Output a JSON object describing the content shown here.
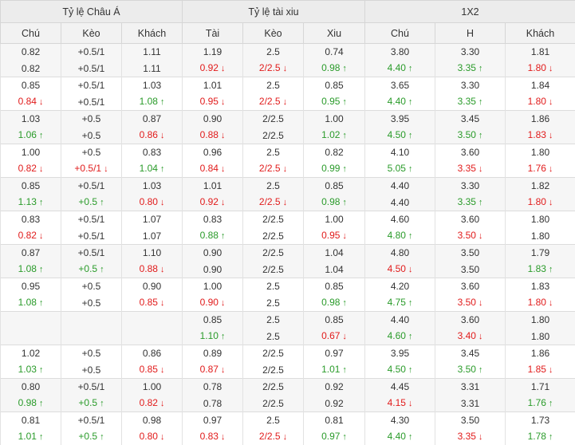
{
  "header": {
    "groups": [
      "Tỷ lệ Châu Á",
      "Tỷ lệ tài xiu",
      "1X2"
    ],
    "columns": [
      "Chú",
      "Kèo",
      "Khách",
      "Tài",
      "Kèo",
      "Xiu",
      "Chú",
      "H",
      "Khách"
    ]
  },
  "rows": [
    [
      [
        "0.82",
        "",
        "0.82",
        ""
      ],
      [
        "+0.5/1",
        "",
        "+0.5/1",
        ""
      ],
      [
        "1.11",
        "",
        "1.11",
        ""
      ],
      [
        "1.19",
        "",
        "0.92",
        "d"
      ],
      [
        "2.5",
        "",
        "2/2.5",
        "d"
      ],
      [
        "0.74",
        "",
        "0.98",
        "u"
      ],
      [
        "3.80",
        "",
        "4.40",
        "u"
      ],
      [
        "3.30",
        "",
        "3.35",
        "u"
      ],
      [
        "1.81",
        "",
        "1.80",
        "d"
      ]
    ],
    [
      [
        "0.85",
        "",
        "0.84",
        "d"
      ],
      [
        "+0.5/1",
        "",
        "+0.5/1",
        ""
      ],
      [
        "1.03",
        "",
        "1.08",
        "u"
      ],
      [
        "1.01",
        "",
        "0.95",
        "d"
      ],
      [
        "2.5",
        "",
        "2/2.5",
        "d"
      ],
      [
        "0.85",
        "",
        "0.95",
        "u"
      ],
      [
        "3.65",
        "",
        "4.40",
        "u"
      ],
      [
        "3.30",
        "",
        "3.35",
        "u"
      ],
      [
        "1.84",
        "",
        "1.80",
        "d"
      ]
    ],
    [
      [
        "1.03",
        "",
        "1.06",
        "u"
      ],
      [
        "+0.5",
        "",
        "+0.5",
        ""
      ],
      [
        "0.87",
        "",
        "0.86",
        "d"
      ],
      [
        "0.90",
        "",
        "0.88",
        "d"
      ],
      [
        "2/2.5",
        "",
        "2/2.5",
        ""
      ],
      [
        "1.00",
        "",
        "1.02",
        "u"
      ],
      [
        "3.95",
        "",
        "4.50",
        "u"
      ],
      [
        "3.45",
        "",
        "3.50",
        "u"
      ],
      [
        "1.86",
        "",
        "1.83",
        "d"
      ]
    ],
    [
      [
        "1.00",
        "",
        "0.82",
        "d"
      ],
      [
        "+0.5",
        "",
        "+0.5/1",
        "d"
      ],
      [
        "0.83",
        "",
        "1.04",
        "u"
      ],
      [
        "0.96",
        "",
        "0.84",
        "d"
      ],
      [
        "2.5",
        "",
        "2/2.5",
        "d"
      ],
      [
        "0.82",
        "",
        "0.99",
        "u"
      ],
      [
        "4.10",
        "",
        "5.05",
        "u"
      ],
      [
        "3.60",
        "",
        "3.35",
        "d"
      ],
      [
        "1.80",
        "",
        "1.76",
        "d"
      ]
    ],
    [
      [
        "0.85",
        "",
        "1.13",
        "u"
      ],
      [
        "+0.5/1",
        "",
        "+0.5",
        "u"
      ],
      [
        "1.03",
        "",
        "0.80",
        "d"
      ],
      [
        "1.01",
        "",
        "0.92",
        "d"
      ],
      [
        "2.5",
        "",
        "2/2.5",
        "d"
      ],
      [
        "0.85",
        "",
        "0.98",
        "u"
      ],
      [
        "4.40",
        "",
        "4.40",
        ""
      ],
      [
        "3.30",
        "",
        "3.35",
        "u"
      ],
      [
        "1.82",
        "",
        "1.80",
        "d"
      ]
    ],
    [
      [
        "0.83",
        "",
        "0.82",
        "d"
      ],
      [
        "+0.5/1",
        "",
        "+0.5/1",
        ""
      ],
      [
        "1.07",
        "",
        "1.07",
        ""
      ],
      [
        "0.83",
        "",
        "0.88",
        "u"
      ],
      [
        "2/2.5",
        "",
        "2/2.5",
        ""
      ],
      [
        "1.00",
        "",
        "0.95",
        "d"
      ],
      [
        "4.60",
        "",
        "4.80",
        "u"
      ],
      [
        "3.60",
        "",
        "3.50",
        "d"
      ],
      [
        "1.80",
        "",
        "1.80",
        ""
      ]
    ],
    [
      [
        "0.87",
        "",
        "1.08",
        "u"
      ],
      [
        "+0.5/1",
        "",
        "+0.5",
        "u"
      ],
      [
        "1.10",
        "",
        "0.88",
        "d"
      ],
      [
        "0.90",
        "",
        "0.90",
        ""
      ],
      [
        "2/2.5",
        "",
        "2/2.5",
        ""
      ],
      [
        "1.04",
        "",
        "1.04",
        ""
      ],
      [
        "4.80",
        "",
        "4.50",
        "d"
      ],
      [
        "3.50",
        "",
        "3.50",
        ""
      ],
      [
        "1.79",
        "",
        "1.83",
        "u"
      ]
    ],
    [
      [
        "0.95",
        "",
        "1.08",
        "u"
      ],
      [
        "+0.5",
        "",
        "+0.5",
        ""
      ],
      [
        "0.90",
        "",
        "0.85",
        "d"
      ],
      [
        "1.00",
        "",
        "0.90",
        "d"
      ],
      [
        "2.5",
        "",
        "2.5",
        ""
      ],
      [
        "0.85",
        "",
        "0.98",
        "u"
      ],
      [
        "4.20",
        "",
        "4.75",
        "u"
      ],
      [
        "3.60",
        "",
        "3.50",
        "d"
      ],
      [
        "1.83",
        "",
        "1.80",
        "d"
      ]
    ],
    [
      [
        "",
        "",
        "",
        ""
      ],
      [
        "",
        "",
        "",
        ""
      ],
      [
        "",
        "",
        "",
        ""
      ],
      [
        "0.85",
        "",
        "1.10",
        "u"
      ],
      [
        "2.5",
        "",
        "2.5",
        ""
      ],
      [
        "0.85",
        "",
        "0.67",
        "d"
      ],
      [
        "4.40",
        "",
        "4.60",
        "u"
      ],
      [
        "3.60",
        "",
        "3.40",
        "d"
      ],
      [
        "1.80",
        "",
        "1.80",
        ""
      ]
    ],
    [
      [
        "1.02",
        "",
        "1.03",
        "u"
      ],
      [
        "+0.5",
        "",
        "+0.5",
        ""
      ],
      [
        "0.86",
        "",
        "0.85",
        "d"
      ],
      [
        "0.89",
        "",
        "0.87",
        "d"
      ],
      [
        "2/2.5",
        "",
        "2/2.5",
        ""
      ],
      [
        "0.97",
        "",
        "1.01",
        "u"
      ],
      [
        "3.95",
        "",
        "4.50",
        "u"
      ],
      [
        "3.45",
        "",
        "3.50",
        "u"
      ],
      [
        "1.86",
        "",
        "1.85",
        "d"
      ]
    ],
    [
      [
        "0.80",
        "",
        "0.98",
        "u"
      ],
      [
        "+0.5/1",
        "",
        "+0.5",
        "u"
      ],
      [
        "1.00",
        "",
        "0.82",
        "d"
      ],
      [
        "0.78",
        "",
        "0.78",
        ""
      ],
      [
        "2/2.5",
        "",
        "2/2.5",
        ""
      ],
      [
        "0.92",
        "",
        "0.92",
        ""
      ],
      [
        "4.45",
        "",
        "4.15",
        "d"
      ],
      [
        "3.31",
        "",
        "3.31",
        ""
      ],
      [
        "1.71",
        "",
        "1.76",
        "u"
      ]
    ],
    [
      [
        "0.81",
        "",
        "1.01",
        "u"
      ],
      [
        "+0.5/1",
        "",
        "+0.5",
        "u"
      ],
      [
        "0.98",
        "",
        "0.80",
        "d"
      ],
      [
        "0.97",
        "",
        "0.83",
        "d"
      ],
      [
        "2.5",
        "",
        "2/2.5",
        "d"
      ],
      [
        "0.81",
        "",
        "0.97",
        "u"
      ],
      [
        "4.30",
        "",
        "4.40",
        "u"
      ],
      [
        "3.50",
        "",
        "3.35",
        "d"
      ],
      [
        "1.73",
        "",
        "1.78",
        "u"
      ]
    ]
  ],
  "colors": {
    "up": "#2a9b2a",
    "down": "#e11b1b",
    "header_bg": "#ececec",
    "row_alt_bg": "#f6f6f6"
  },
  "icons": {
    "up": "arrow-up-icon",
    "down": "arrow-down-icon"
  }
}
